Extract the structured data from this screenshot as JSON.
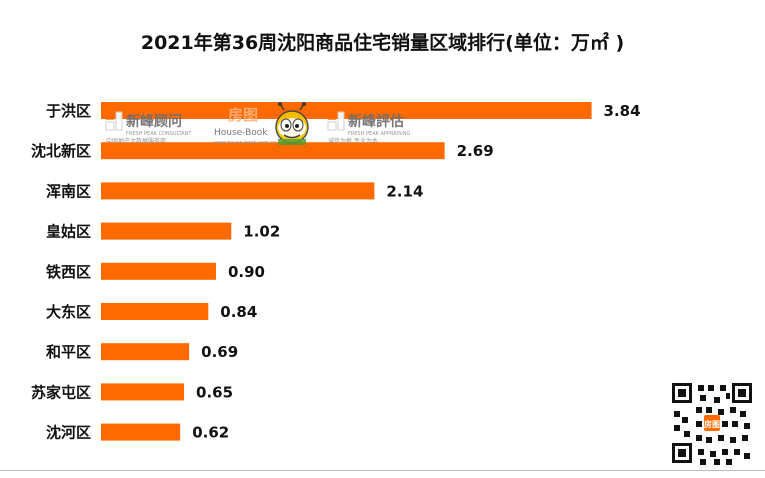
{
  "chart_data": {
    "type": "bar",
    "orientation": "horizontal",
    "title": "2021年第36周沈阳商品住宅销量区域排行(单位：万㎡ )",
    "categories": [
      "于洪区",
      "沈北新区",
      "浑南区",
      "皇姑区",
      "铁西区",
      "大东区",
      "和平区",
      "苏家屯区",
      "沈河区"
    ],
    "values": [
      3.84,
      2.69,
      2.14,
      1.02,
      0.9,
      0.84,
      0.69,
      0.65,
      0.62
    ],
    "value_labels": [
      "3.84",
      "2.69",
      "2.14",
      "1.02",
      "0.90",
      "0.84",
      "0.69",
      "0.65",
      "0.62"
    ],
    "xlim": [
      0,
      4.0
    ],
    "grid": false,
    "bar_color": "#ff6a00"
  },
  "watermark": {
    "brand1": "新峰顾问",
    "brand1_en": "FRESH PEAK CONSULTANT",
    "brand2": "房图",
    "brand2_en": "House-Book",
    "brand2_url": "www.house-book.com.cn",
    "brand3": "新峰評估",
    "brand3_en": "FRESH PEAK APPRAISING",
    "brand3_tag": "诚信为根  专业为本",
    "brand1_tag": "中国地产大数据服务商"
  },
  "colors": {
    "title": "#111111",
    "bar": "#ff6a00",
    "text": "#111111"
  }
}
